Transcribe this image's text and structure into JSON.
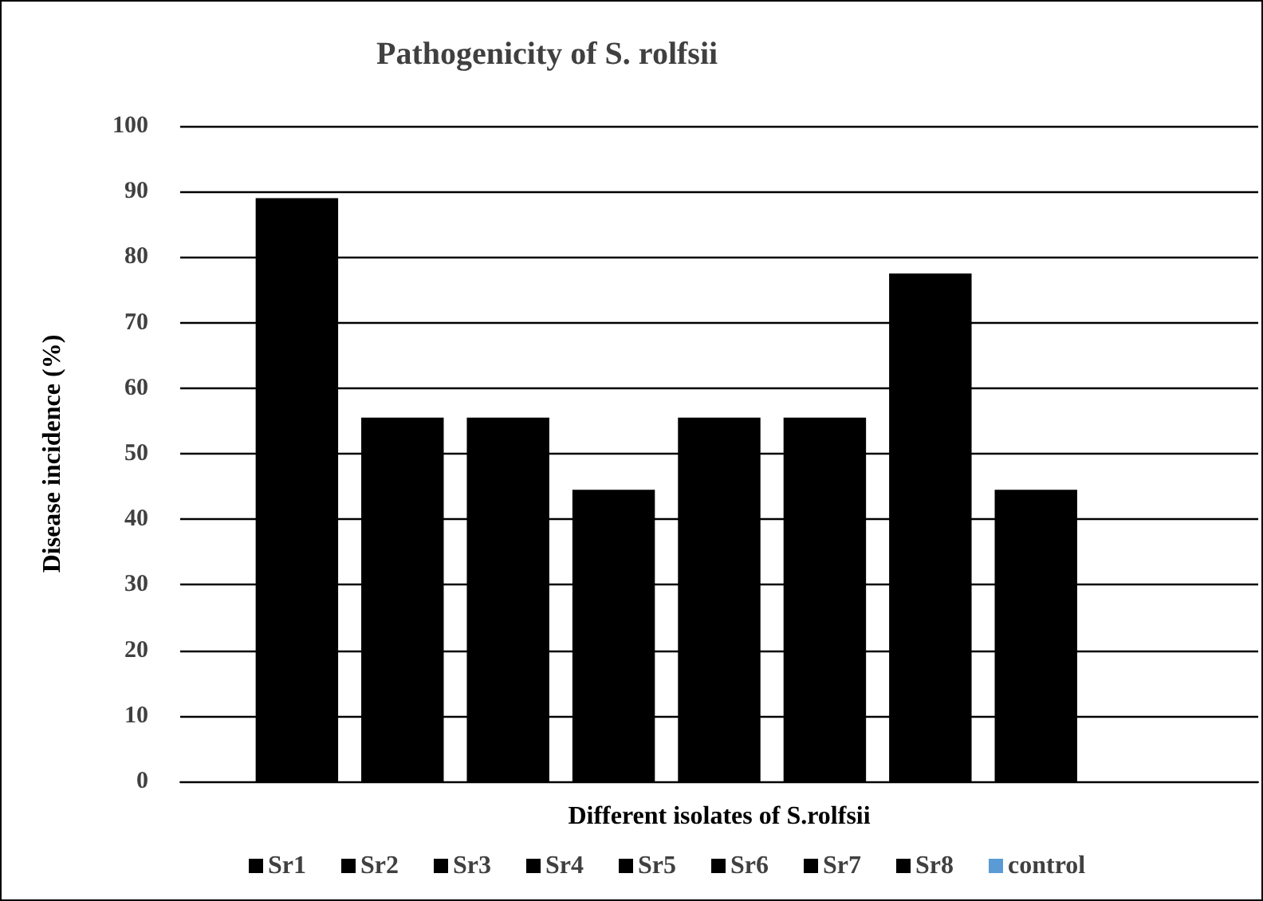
{
  "chart_data": {
    "type": "bar",
    "title": "Pathogenicity of S. rolfsii",
    "xlabel": "Different isolates of S.rolfsii",
    "ylabel": "Disease incidence (%)",
    "categories": [
      null
    ],
    "series": [
      {
        "name": "Sr1",
        "color": "#000000",
        "values": [
          89
        ]
      },
      {
        "name": "Sr2",
        "color": "#000000",
        "values": [
          55.5
        ]
      },
      {
        "name": "Sr3",
        "color": "#000000",
        "values": [
          55.5
        ]
      },
      {
        "name": "Sr4",
        "color": "#000000",
        "values": [
          44.5
        ]
      },
      {
        "name": "Sr5",
        "color": "#000000",
        "values": [
          55.5
        ]
      },
      {
        "name": "Sr6",
        "color": "#000000",
        "values": [
          55.5
        ]
      },
      {
        "name": "Sr7",
        "color": "#000000",
        "values": [
          77.5
        ]
      },
      {
        "name": "Sr8",
        "color": "#000000",
        "values": [
          44.5
        ]
      },
      {
        "name": "control",
        "color": "#5b9bd5",
        "values": [
          0
        ]
      }
    ],
    "ylim": [
      0,
      100
    ],
    "yticks": [
      0,
      10,
      20,
      30,
      40,
      50,
      60,
      70,
      80,
      90,
      100
    ],
    "grid": "y",
    "legend": "bottom"
  }
}
